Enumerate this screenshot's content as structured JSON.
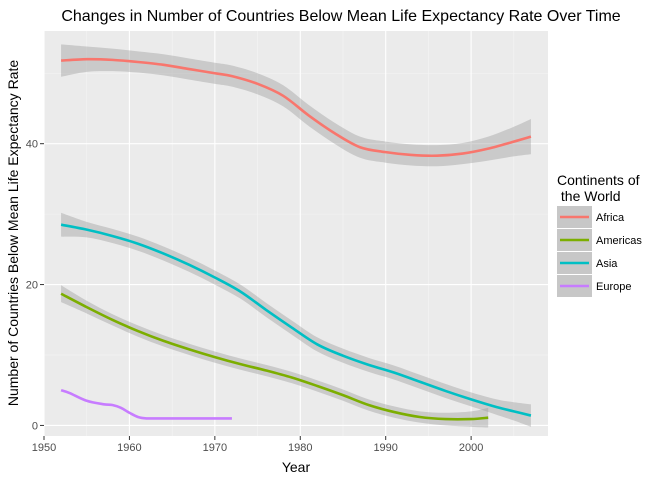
{
  "chart_data": {
    "type": "line",
    "title": "Changes in Number of Countries Below Mean Life Expectancy Rate Over Time",
    "xlabel": "Year",
    "ylabel": "Number of Countries Below Mean Life Expectancy Rate",
    "xlim": [
      1950,
      2009
    ],
    "ylim": [
      -1.5,
      56
    ],
    "x_ticks": [
      1950,
      1960,
      1970,
      1980,
      1990,
      2000
    ],
    "y_ticks": [
      0,
      20,
      40
    ],
    "grid": true,
    "confidence_band": true,
    "legend": {
      "title_line1": "Continents of",
      "title_line2": " the World",
      "placement": "right"
    },
    "series": [
      {
        "name": "Africa",
        "color": "#F8766D",
        "x": [
          1952,
          1955,
          1958,
          1961,
          1964,
          1967,
          1970,
          1972,
          1975,
          1978,
          1981,
          1984,
          1987,
          1990,
          1993,
          1996,
          1999,
          2002,
          2005,
          2007
        ],
        "y": [
          51.8,
          52.0,
          51.9,
          51.6,
          51.2,
          50.6,
          50.0,
          49.6,
          48.5,
          46.8,
          44.0,
          41.5,
          39.5,
          38.8,
          38.4,
          38.3,
          38.6,
          39.3,
          40.3,
          41.0
        ],
        "band": [
          2.3,
          1.8,
          1.6,
          1.5,
          1.5,
          1.5,
          1.5,
          1.5,
          1.5,
          1.5,
          1.5,
          1.5,
          1.5,
          1.5,
          1.5,
          1.5,
          1.5,
          1.7,
          2.1,
          2.5
        ]
      },
      {
        "name": "Americas",
        "color": "#7CAE00",
        "x": [
          1952,
          1955,
          1958,
          1961,
          1964,
          1967,
          1970,
          1973,
          1976,
          1979,
          1982,
          1985,
          1988,
          1991,
          1994,
          1997,
          2000,
          2002
        ],
        "y": [
          18.7,
          16.8,
          15.0,
          13.4,
          12.0,
          10.8,
          9.7,
          8.7,
          7.8,
          6.8,
          5.6,
          4.3,
          2.9,
          1.9,
          1.2,
          0.9,
          0.9,
          1.1
        ],
        "band": [
          1.2,
          0.9,
          0.8,
          0.8,
          0.8,
          0.8,
          0.8,
          0.8,
          0.8,
          0.8,
          0.8,
          0.8,
          0.8,
          0.8,
          0.8,
          0.9,
          1.1,
          1.4
        ]
      },
      {
        "name": "Asia",
        "color": "#00BFC4",
        "x": [
          1952,
          1955,
          1958,
          1961,
          1964,
          1967,
          1970,
          1973,
          1976,
          1979,
          1982,
          1985,
          1988,
          1991,
          1994,
          1997,
          2000,
          2003,
          2005,
          2007
        ],
        "y": [
          28.5,
          27.8,
          26.9,
          25.8,
          24.4,
          22.8,
          21.0,
          19.0,
          16.4,
          13.9,
          11.5,
          9.9,
          8.6,
          7.5,
          6.2,
          4.9,
          3.7,
          2.6,
          2.0,
          1.4
        ],
        "band": [
          1.7,
          1.1,
          1.0,
          1.0,
          1.0,
          1.0,
          1.0,
          1.0,
          1.0,
          1.0,
          1.0,
          1.0,
          1.0,
          1.0,
          1.0,
          1.0,
          1.0,
          1.1,
          1.3,
          1.6
        ]
      },
      {
        "name": "Europe",
        "color": "#C77CFF",
        "x": [
          1952,
          1953,
          1955,
          1957,
          1958,
          1959,
          1960,
          1961,
          1962,
          1964,
          1966,
          1968,
          1970,
          1972
        ],
        "y": [
          5.0,
          4.6,
          3.5,
          3.0,
          2.9,
          2.5,
          1.8,
          1.2,
          1.0,
          1.0,
          1.0,
          1.0,
          1.0,
          1.0
        ],
        "band": []
      }
    ]
  }
}
